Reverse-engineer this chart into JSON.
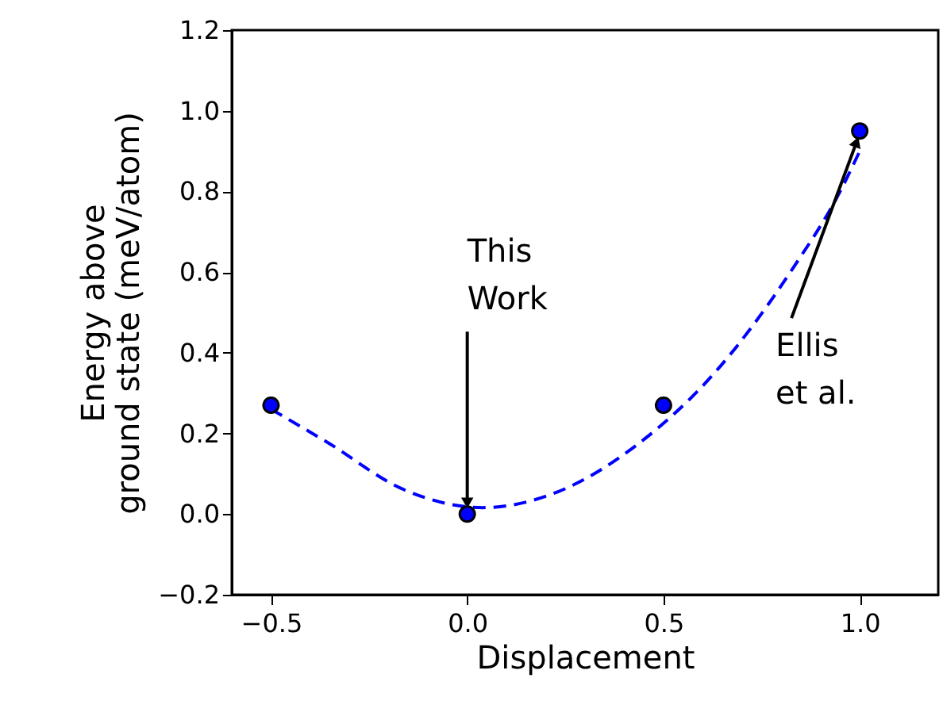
{
  "chart_data": {
    "type": "scatter",
    "xlabel": "Displacement",
    "ylabel": "Energy above\nground state (meV/atom)",
    "series": [
      {
        "type": "line",
        "color": "#0000ff",
        "line_style": "dashed",
        "marker": "none",
        "x": [
          -0.5,
          -0.36,
          -0.16,
          0.04,
          0.23,
          0.43,
          0.63,
          0.83,
          0.95,
          1.0
        ],
        "values": [
          0.26,
          0.18,
          0.06,
          0.016,
          0.055,
          0.17,
          0.35,
          0.61,
          0.8,
          0.9
        ]
      },
      {
        "color": "#0000ff",
        "marker": "circle",
        "x": [
          -0.5,
          0.0,
          0.5,
          1.0
        ],
        "values": [
          0.27,
          0.0,
          0.27,
          0.95
        ]
      }
    ],
    "annotations": [
      {
        "text": "This\nWork",
        "x": 0.0,
        "y": 0.0
      },
      {
        "text": "Ellis\net al.",
        "x": 1.0,
        "y": 0.95
      }
    ],
    "xlim": [
      -0.6,
      1.2
    ],
    "ylim": [
      -0.2,
      1.2
    ],
    "xticks": [
      {
        "value": -0.5,
        "label": "−0.5"
      },
      {
        "value": 0.0,
        "label": "0.0"
      },
      {
        "value": 0.5,
        "label": "0.5"
      },
      {
        "value": 1.0,
        "label": "1.0"
      }
    ],
    "yticks": [
      {
        "value": -0.2,
        "label": "−0.2"
      },
      {
        "value": 0.0,
        "label": "0.0"
      },
      {
        "value": 0.2,
        "label": "0.2"
      },
      {
        "value": 0.4,
        "label": "0.4"
      },
      {
        "value": 0.6,
        "label": "0.6"
      },
      {
        "value": 0.8,
        "label": "0.8"
      },
      {
        "value": 1.0,
        "label": "1.0"
      },
      {
        "value": 1.2,
        "label": "1.2"
      }
    ],
    "grid": false
  }
}
